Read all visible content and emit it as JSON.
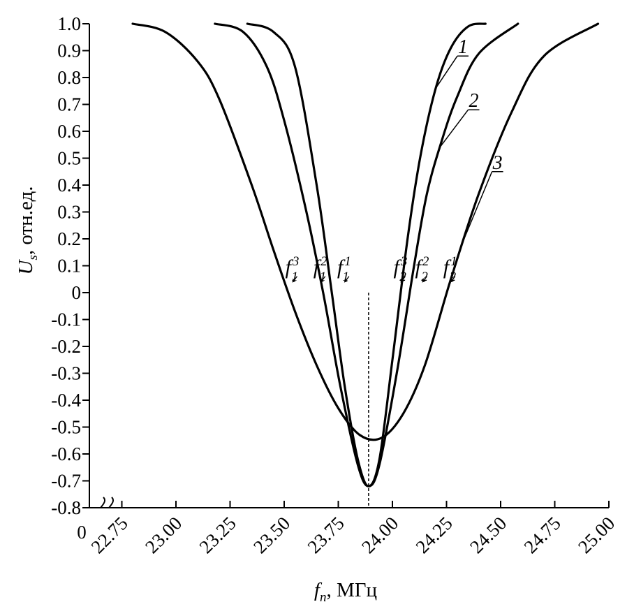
{
  "chart_data": {
    "type": "line",
    "xlabel": {
      "symbol": "f",
      "subscript": "n",
      "unit": ", МГц"
    },
    "ylabel": {
      "symbol": "U",
      "subscript": "s",
      "unit": ", отн.ед."
    },
    "xlim": [
      22.6,
      25.0
    ],
    "ylim": [
      -0.8,
      1.0
    ],
    "x_ticks": [
      22.75,
      23.0,
      23.25,
      23.5,
      23.75,
      24.0,
      24.25,
      24.5,
      24.75,
      25.0
    ],
    "x_tick_labels": [
      "22.75",
      "23.00",
      "23.25",
      "23.50",
      "23.75",
      "24.00",
      "24.25",
      "24.50",
      "24.75",
      "25.00"
    ],
    "y_ticks": [
      1.0,
      0.9,
      0.8,
      0.7,
      0.6,
      0.5,
      0.4,
      0.3,
      0.2,
      0.1,
      0,
      -0.1,
      -0.2,
      -0.3,
      -0.4,
      -0.5,
      -0.6,
      -0.7,
      -0.8
    ],
    "y_tick_labels": [
      "1.0",
      "0.9",
      "0.8",
      "0.7",
      "0.6",
      "0.5",
      "0.4",
      "0.3",
      "0.2",
      "0.1",
      "0",
      "-0.1",
      "-0.2",
      "-0.3",
      "-0.4",
      "-0.5",
      "-0.6",
      "-0.7",
      "-0.8"
    ],
    "origin_label": "0",
    "grid": false,
    "series": [
      {
        "name": "1",
        "x": [
          23.33,
          23.45,
          23.55,
          23.65,
          23.72,
          23.78,
          23.84,
          23.89,
          23.94,
          24.0,
          24.07,
          24.13,
          24.2,
          24.27,
          24.35,
          24.43
        ],
        "y": [
          1.0,
          0.97,
          0.84,
          0.4,
          0.0,
          -0.35,
          -0.62,
          -0.72,
          -0.62,
          -0.25,
          0.2,
          0.51,
          0.76,
          0.91,
          0.99,
          1.0
        ]
      },
      {
        "name": "2",
        "x": [
          23.18,
          23.31,
          23.42,
          23.5,
          23.6,
          23.68,
          23.76,
          23.84,
          23.89,
          23.94,
          24.02,
          24.1,
          24.16,
          24.23,
          24.3,
          24.4,
          24.58
        ],
        "y": [
          1.0,
          0.97,
          0.84,
          0.64,
          0.31,
          0.0,
          -0.35,
          -0.64,
          -0.72,
          -0.64,
          -0.3,
          0.1,
          0.37,
          0.57,
          0.73,
          0.89,
          1.0
        ]
      },
      {
        "name": "3",
        "x": [
          22.8,
          22.95,
          23.1,
          23.2,
          23.35,
          23.45,
          23.55,
          23.65,
          23.75,
          23.85,
          23.95,
          24.05,
          24.15,
          24.27,
          24.4,
          24.55,
          24.7,
          24.95
        ],
        "y": [
          1.0,
          0.97,
          0.86,
          0.72,
          0.4,
          0.16,
          -0.07,
          -0.27,
          -0.43,
          -0.53,
          -0.54,
          -0.45,
          -0.27,
          0.05,
          0.37,
          0.67,
          0.88,
          1.0
        ]
      }
    ],
    "marker_line": {
      "x": 23.89,
      "y_from": 0.0,
      "y_to": -0.8,
      "style": "dashed"
    },
    "annotations": [
      {
        "base": "f",
        "sub": "1",
        "sup": "3",
        "x": 23.55
      },
      {
        "base": "f",
        "sub": "1",
        "sup": "2",
        "x": 23.68
      },
      {
        "base": "f",
        "sub": "1",
        "sup": "1",
        "x": 23.79
      },
      {
        "base": "f",
        "sub": "2",
        "sup": "3",
        "x": 24.05
      },
      {
        "base": "f",
        "sub": "2",
        "sup": "2",
        "x": 24.15
      },
      {
        "base": "f",
        "sub": "2",
        "sup": "1",
        "x": 24.28
      }
    ]
  }
}
